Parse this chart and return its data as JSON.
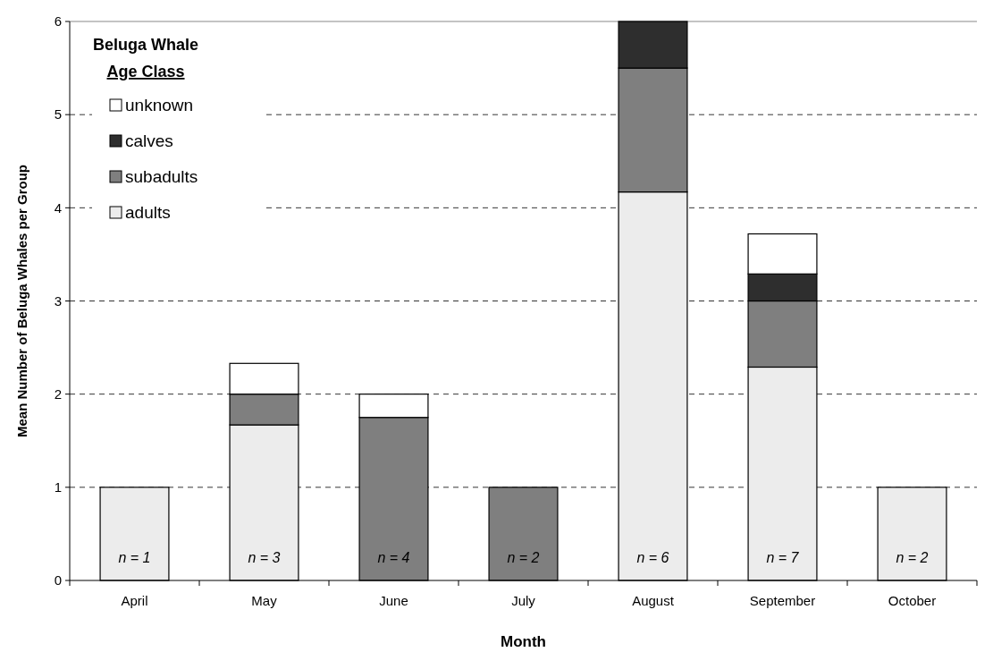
{
  "chart_data": {
    "type": "bar",
    "stacked": true,
    "xlabel": "Month",
    "ylabel": "Mean Number of Beluga Whales per Group",
    "legend_title": "Beluga Whale Age Class",
    "categories": [
      "April",
      "May",
      "June",
      "July",
      "August",
      "September",
      "October"
    ],
    "series": [
      {
        "name": "adults",
        "color": "#ececec",
        "values": [
          1,
          1.67,
          0,
          0,
          4.17,
          2.29,
          1
        ]
      },
      {
        "name": "subadults",
        "color": "#7f7f7f",
        "values": [
          0,
          0.33,
          1.75,
          1,
          1.33,
          0.71,
          0
        ]
      },
      {
        "name": "calves",
        "color": "#2e2e2e",
        "values": [
          0,
          0,
          0,
          0,
          0.5,
          0.29,
          0
        ]
      },
      {
        "name": "unknown",
        "color": "#ffffff",
        "values": [
          0,
          0.33,
          0.25,
          0,
          0,
          0.43,
          0
        ]
      }
    ],
    "ylim": [
      0,
      6
    ],
    "yticks": [
      0,
      1,
      2,
      3,
      4,
      5,
      6
    ],
    "grid": "y",
    "legend": "top left",
    "annotations": [
      "n = 1",
      "n = 3",
      "n = 4",
      "n = 2",
      "n = 6",
      "n = 7",
      "n = 2"
    ]
  }
}
